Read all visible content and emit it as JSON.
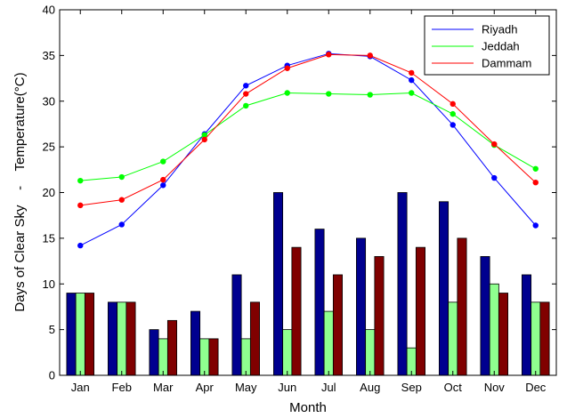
{
  "chart_data": {
    "type": "bar+line",
    "xlabel": "Month",
    "ylabel": "Days of Clear Sky    -    Temperature(°C)",
    "ylim": [
      0,
      40
    ],
    "yticks": [
      0,
      5,
      10,
      15,
      20,
      25,
      30,
      35,
      40
    ],
    "grid": false,
    "legend_position": "top-right",
    "categories": [
      "Jan",
      "Feb",
      "Mar",
      "Apr",
      "May",
      "Jun",
      "Jul",
      "Aug",
      "Sep",
      "Oct",
      "Nov",
      "Dec"
    ],
    "bar_series": [
      {
        "color": "#00008f",
        "values": [
          9,
          8,
          5,
          7,
          11,
          20,
          16,
          15,
          20,
          19,
          13,
          11
        ]
      },
      {
        "color": "#8fff8f",
        "values": [
          9,
          8,
          4,
          4,
          4,
          5,
          7,
          5,
          3,
          8,
          10,
          8
        ]
      },
      {
        "color": "#800000",
        "values": [
          9,
          8,
          6,
          4,
          8,
          14,
          11,
          13,
          14,
          15,
          9,
          8
        ]
      }
    ],
    "line_series": [
      {
        "name": "Riyadh",
        "color": "#0000ff",
        "values": [
          14.2,
          16.5,
          20.8,
          26.4,
          31.7,
          33.9,
          35.2,
          34.9,
          32.3,
          27.4,
          21.6,
          16.4
        ]
      },
      {
        "name": "Jeddah",
        "color": "#00ff00",
        "values": [
          21.3,
          21.7,
          23.4,
          26.3,
          29.5,
          30.9,
          30.8,
          30.7,
          30.9,
          28.6,
          25.2,
          22.6
        ]
      },
      {
        "name": "Dammam",
        "color": "#ff0000",
        "values": [
          18.6,
          19.2,
          21.4,
          25.8,
          30.8,
          33.6,
          35.1,
          35.0,
          33.1,
          29.7,
          25.3,
          21.1
        ]
      }
    ]
  }
}
